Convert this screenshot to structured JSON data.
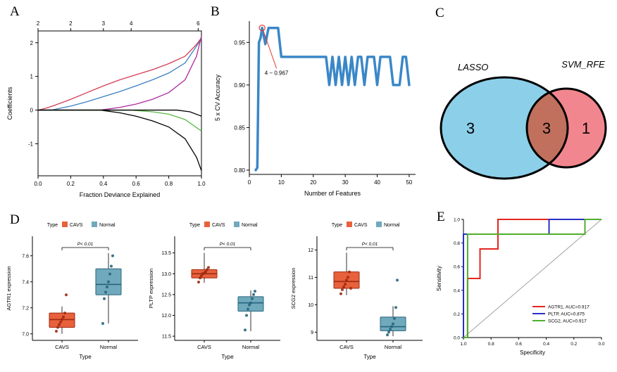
{
  "figure": {
    "background": "#ffffff"
  },
  "chart_data": [
    {
      "panel": "A",
      "type": "line",
      "title": "LASSO coefficient paths",
      "xlabel": "Fraction Deviance Explained",
      "ylabel": "Coefficients",
      "xlim": [
        0.0,
        1.0
      ],
      "ylim": [
        -1.95,
        2.35
      ],
      "xticks": [
        0.0,
        0.2,
        0.4,
        0.6,
        0.8,
        1.0
      ],
      "yticks": [
        -1,
        0,
        1,
        2
      ],
      "top_ticks": [
        {
          "x": 0.0,
          "label": "2"
        },
        {
          "x": 0.2,
          "label": "2"
        },
        {
          "x": 0.4,
          "label": "3"
        },
        {
          "x": 0.57,
          "label": "4"
        },
        {
          "x": 0.98,
          "label": "6"
        }
      ],
      "series": [
        {
          "name": "coef-path-red",
          "color": "#d43d55",
          "points": [
            [
              0,
              0
            ],
            [
              0.05,
              0.06
            ],
            [
              0.1,
              0.14
            ],
            [
              0.2,
              0.32
            ],
            [
              0.3,
              0.52
            ],
            [
              0.4,
              0.72
            ],
            [
              0.5,
              0.9
            ],
            [
              0.6,
              1.05
            ],
            [
              0.7,
              1.2
            ],
            [
              0.8,
              1.38
            ],
            [
              0.9,
              1.6
            ],
            [
              0.97,
              1.95
            ],
            [
              1.0,
              2.15
            ]
          ]
        },
        {
          "name": "coef-path-blue",
          "color": "#3b7fc4",
          "points": [
            [
              0,
              0
            ],
            [
              0.08,
              0
            ],
            [
              0.2,
              0.12
            ],
            [
              0.3,
              0.25
            ],
            [
              0.4,
              0.4
            ],
            [
              0.5,
              0.55
            ],
            [
              0.6,
              0.72
            ],
            [
              0.7,
              0.9
            ],
            [
              0.8,
              1.1
            ],
            [
              0.9,
              1.4
            ],
            [
              0.97,
              1.9
            ],
            [
              1.0,
              2.12
            ]
          ]
        },
        {
          "name": "coef-path-magenta",
          "color": "#b0299e",
          "points": [
            [
              0,
              0
            ],
            [
              0.38,
              0
            ],
            [
              0.5,
              0.08
            ],
            [
              0.6,
              0.18
            ],
            [
              0.7,
              0.32
            ],
            [
              0.8,
              0.52
            ],
            [
              0.9,
              0.9
            ],
            [
              0.97,
              1.6
            ],
            [
              1.0,
              2.2
            ]
          ]
        },
        {
          "name": "coef-path-black",
          "color": "#000000",
          "points": [
            [
              0,
              0
            ],
            [
              0.38,
              0
            ],
            [
              0.5,
              -0.08
            ],
            [
              0.6,
              -0.18
            ],
            [
              0.7,
              -0.32
            ],
            [
              0.8,
              -0.5
            ],
            [
              0.9,
              -0.85
            ],
            [
              0.97,
              -1.4
            ],
            [
              1.0,
              -1.8
            ]
          ]
        },
        {
          "name": "coef-path-green",
          "color": "#58b944",
          "points": [
            [
              0,
              0
            ],
            [
              0.57,
              0
            ],
            [
              0.7,
              -0.05
            ],
            [
              0.8,
              -0.12
            ],
            [
              0.9,
              -0.28
            ],
            [
              1.0,
              -0.62
            ]
          ]
        },
        {
          "name": "coef-path-black-2",
          "color": "#000000",
          "points": [
            [
              0,
              0
            ],
            [
              0.85,
              0
            ],
            [
              0.93,
              -0.05
            ],
            [
              1.0,
              -0.18
            ]
          ]
        }
      ]
    },
    {
      "panel": "B",
      "type": "line",
      "title": "SVM-RFE cross validation accuracy",
      "xlabel": "Number of Features",
      "ylabel": "5 x CV Accuracy",
      "xlim": [
        0,
        52
      ],
      "ylim": [
        0.795,
        0.975
      ],
      "xticks": [
        0,
        10,
        20,
        30,
        40,
        50
      ],
      "yticks": [
        0.8,
        0.85,
        0.9,
        0.95
      ],
      "line_color": "#3a87c8",
      "points": [
        [
          2,
          0.8
        ],
        [
          2.5,
          0.803
        ],
        [
          3,
          0.95
        ],
        [
          3.5,
          0.955
        ],
        [
          4,
          0.967
        ],
        [
          5,
          0.948
        ],
        [
          6,
          0.967
        ],
        [
          9,
          0.967
        ],
        [
          10,
          0.933
        ],
        [
          24,
          0.933
        ],
        [
          25,
          0.9
        ],
        [
          26,
          0.933
        ],
        [
          27,
          0.9
        ],
        [
          28,
          0.933
        ],
        [
          29,
          0.9
        ],
        [
          30,
          0.933
        ],
        [
          31,
          0.9
        ],
        [
          32,
          0.933
        ],
        [
          33,
          0.9
        ],
        [
          34,
          0.933
        ],
        [
          35,
          0.933
        ],
        [
          36,
          0.9
        ],
        [
          37,
          0.933
        ],
        [
          39,
          0.933
        ],
        [
          40,
          0.9
        ],
        [
          41,
          0.933
        ],
        [
          44,
          0.933
        ],
        [
          45,
          0.9
        ],
        [
          47,
          0.9
        ],
        [
          48,
          0.933
        ],
        [
          49,
          0.933
        ],
        [
          50,
          0.9
        ]
      ],
      "annotation": {
        "text": "4 − 0.967",
        "at": [
          4,
          0.967
        ],
        "label_pos": [
          8.5,
          0.912
        ],
        "color": "#e8382e"
      }
    },
    {
      "panel": "C",
      "type": "venn",
      "left": {
        "label": "LASSO",
        "count": "3",
        "fill": "#8ccfe9"
      },
      "right": {
        "label": "SVM_RFE",
        "count": "1",
        "fill": "#f2868f"
      },
      "intersection": {
        "count": "3",
        "fill": "#c0705c"
      }
    },
    {
      "panel": "D",
      "type": "box",
      "legend_title": "Type",
      "groups": [
        "CAVS",
        "Normal"
      ],
      "colors": {
        "CAVS": {
          "fill": "#e8613c",
          "dark": "#9e2a10"
        },
        "Normal": {
          "fill": "#70a9bc",
          "dark": "#27657e"
        }
      },
      "xlabel": "Type",
      "p_label": "P< 0.01",
      "plots": [
        {
          "ylabel": "AGTR1 expression",
          "ylim": [
            6.95,
            7.75
          ],
          "yticks": [
            7.0,
            7.2,
            7.4,
            7.6
          ],
          "ytick_labels": [
            "7.0",
            "7.2",
            "7.4",
            "7.6"
          ],
          "boxes": [
            {
              "group": "CAVS",
              "lo": 7.0,
              "q1": 7.05,
              "med": 7.11,
              "q3": 7.16,
              "hi": 7.21,
              "points": [
                7.02,
                7.05,
                7.07,
                7.09,
                7.11,
                7.13,
                7.16,
                7.3
              ]
            },
            {
              "group": "Normal",
              "lo": 7.08,
              "q1": 7.3,
              "med": 7.38,
              "q3": 7.5,
              "hi": 7.62,
              "points": [
                7.08,
                7.27,
                7.32,
                7.36,
                7.4,
                7.46,
                7.52,
                7.6
              ]
            }
          ]
        },
        {
          "ylabel": "PLTP expression",
          "ylim": [
            11.4,
            13.9
          ],
          "yticks": [
            11.5,
            12.0,
            12.5,
            13.0,
            13.5
          ],
          "ytick_labels": [
            "11.5",
            "12.0",
            "12.5",
            "13.0",
            "13.5"
          ],
          "boxes": [
            {
              "group": "CAVS",
              "lo": 12.78,
              "q1": 12.9,
              "med": 13.0,
              "q3": 13.1,
              "hi": 13.5,
              "points": [
                12.8,
                12.9,
                12.95,
                13.0,
                13.02,
                13.05,
                13.1,
                13.15
              ]
            },
            {
              "group": "Normal",
              "lo": 11.62,
              "q1": 12.1,
              "med": 12.3,
              "q3": 12.45,
              "hi": 12.6,
              "points": [
                11.65,
                12.0,
                12.15,
                12.25,
                12.3,
                12.4,
                12.5,
                12.58
              ]
            }
          ]
        },
        {
          "ylabel": "SCG2 expression",
          "ylim": [
            8.7,
            12.5
          ],
          "yticks": [
            9,
            10,
            11,
            12
          ],
          "ytick_labels": [
            "9",
            "10",
            "11",
            "12"
          ],
          "boxes": [
            {
              "group": "CAVS",
              "lo": 10.35,
              "q1": 10.6,
              "med": 10.85,
              "q3": 11.2,
              "hi": 11.9,
              "points": [
                10.4,
                10.55,
                10.65,
                10.75,
                10.9,
                11.0,
                11.2,
                10.6
              ]
            },
            {
              "group": "Normal",
              "lo": 8.85,
              "q1": 9.05,
              "med": 9.2,
              "q3": 9.55,
              "hi": 9.95,
              "points": [
                8.9,
                9.0,
                9.1,
                9.2,
                9.3,
                9.5,
                9.9,
                10.9
              ]
            }
          ]
        }
      ]
    },
    {
      "panel": "E",
      "type": "roc",
      "xlabel": "Specificity",
      "ylabel": "Sensitivity",
      "xticks": [
        1.0,
        0.8,
        0.6,
        0.4,
        0.2,
        0.0
      ],
      "yticks": [
        0.0,
        0.2,
        0.4,
        0.6,
        0.8,
        1.0
      ],
      "diagonal_color": "#a0a0a0",
      "curves": [
        {
          "name": "AGTR1",
          "auc": "AGTR1, AUC=0.917",
          "color": "#e4261f",
          "points": [
            [
              1.0,
              0.0
            ],
            [
              0.97,
              0.0
            ],
            [
              0.97,
              0.5
            ],
            [
              0.88,
              0.5
            ],
            [
              0.88,
              0.75
            ],
            [
              0.75,
              0.75
            ],
            [
              0.75,
              1.0
            ],
            [
              0.0,
              1.0
            ]
          ]
        },
        {
          "name": "PLTP",
          "auc": "PLTP, AUC=0.875",
          "color": "#2a2fc4",
          "points": [
            [
              1.0,
              0.0
            ],
            [
              1.0,
              0.875
            ],
            [
              0.38,
              0.875
            ],
            [
              0.38,
              1.0
            ],
            [
              0.0,
              1.0
            ]
          ]
        },
        {
          "name": "SCG2",
          "auc": "SCG2, AUC=0.917",
          "color": "#4fae2d",
          "points": [
            [
              1.0,
              0.0
            ],
            [
              0.97,
              0.0
            ],
            [
              0.97,
              0.875
            ],
            [
              0.12,
              0.875
            ],
            [
              0.12,
              1.0
            ],
            [
              0.0,
              1.0
            ]
          ]
        }
      ]
    }
  ]
}
